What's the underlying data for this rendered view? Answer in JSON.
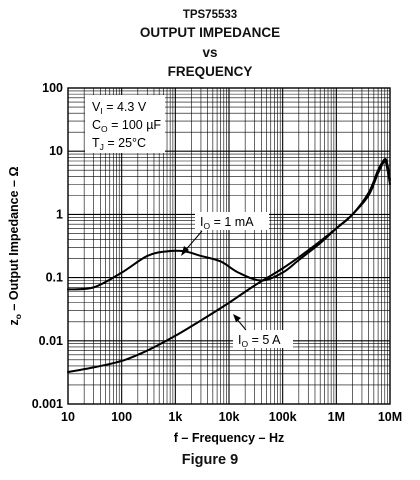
{
  "header": {
    "part_number": "TPS75533",
    "title_line1": "OUTPUT IMPEDANCE",
    "title_line2": "vs",
    "title_line3": "FREQUENCY"
  },
  "caption": "Figure 9",
  "conditions": {
    "vi": {
      "symbol": "V",
      "sub": "I",
      "value": " = 4.3 V"
    },
    "co": {
      "symbol": "C",
      "sub": "O",
      "value": " = 100 µF"
    },
    "tj": {
      "symbol": "T",
      "sub": "J",
      "value": " = 25°C"
    }
  },
  "chart_data": {
    "type": "line",
    "title": "",
    "xlabel": "f – Frequency – Hz",
    "ylabel": "z",
    "ylabel_sub": "o",
    "ylabel_rest": " – Output Impedance – Ω",
    "x_scale": "log",
    "y_scale": "log",
    "xlim": [
      10,
      10000000
    ],
    "ylim": [
      0.001,
      100
    ],
    "x_ticks": [
      10,
      100,
      1000,
      10000,
      100000,
      1000000,
      10000000
    ],
    "x_tick_labels": [
      "10",
      "100",
      "1k",
      "10k",
      "100k",
      "1M",
      "10M"
    ],
    "y_ticks": [
      0.001,
      0.01,
      0.1,
      1,
      10,
      100
    ],
    "y_tick_labels": [
      "0.001",
      "0.01",
      "0.1",
      "1",
      "10",
      "100"
    ],
    "grid": true,
    "series": [
      {
        "name": "IO = 1 mA",
        "label_symbol": "I",
        "label_sub": "O",
        "label_value": " = 1 mA",
        "x": [
          10,
          30,
          100,
          300,
          700,
          1500,
          3000,
          7000,
          15000,
          40000,
          100000,
          200000,
          500000,
          1000000,
          2000000,
          4000000,
          6000000,
          8000000,
          9000000,
          10000000
        ],
        "y": [
          0.065,
          0.07,
          0.12,
          0.22,
          0.26,
          0.26,
          0.22,
          0.18,
          0.12,
          0.09,
          0.12,
          0.19,
          0.35,
          0.6,
          1.0,
          2.0,
          4.5,
          7.0,
          5.0,
          3.0
        ]
      },
      {
        "name": "IO = 5 A",
        "label_symbol": "I",
        "label_sub": "O",
        "label_value": " = 5 A",
        "x": [
          10,
          30,
          100,
          300,
          1000,
          3000,
          10000,
          30000,
          100000,
          300000,
          1000000,
          2000000,
          4000000,
          6000000,
          8000000,
          9000000,
          10000000
        ],
        "y": [
          0.0032,
          0.0038,
          0.0048,
          0.007,
          0.012,
          0.021,
          0.04,
          0.075,
          0.14,
          0.27,
          0.6,
          1.0,
          2.2,
          5.0,
          7.5,
          6.0,
          3.5
        ]
      }
    ]
  }
}
